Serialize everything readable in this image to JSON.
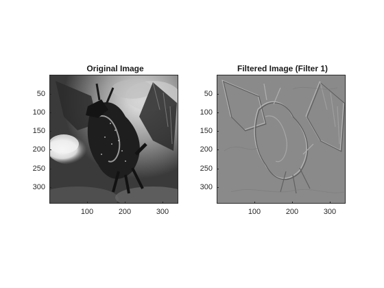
{
  "figure": {
    "panels": [
      {
        "id": "original",
        "title": "Original Image",
        "xticks": [
          "100",
          "200",
          "300"
        ],
        "yticks": [
          "50",
          "100",
          "150",
          "200",
          "250",
          "300"
        ],
        "image_style": "grayscale-photo"
      },
      {
        "id": "filtered",
        "title": "Filtered Image (Filter 1)",
        "xticks": [
          "100",
          "200",
          "300"
        ],
        "yticks": [
          "50",
          "100",
          "150",
          "200",
          "250",
          "300"
        ],
        "image_style": "emboss-gray"
      }
    ]
  },
  "colors": {
    "axis": "#262626",
    "title": "#1a1a1a",
    "filtered_bg": "#8a8a8a",
    "original_dark": "#1e1e1e",
    "original_light": "#f2f2f2"
  }
}
